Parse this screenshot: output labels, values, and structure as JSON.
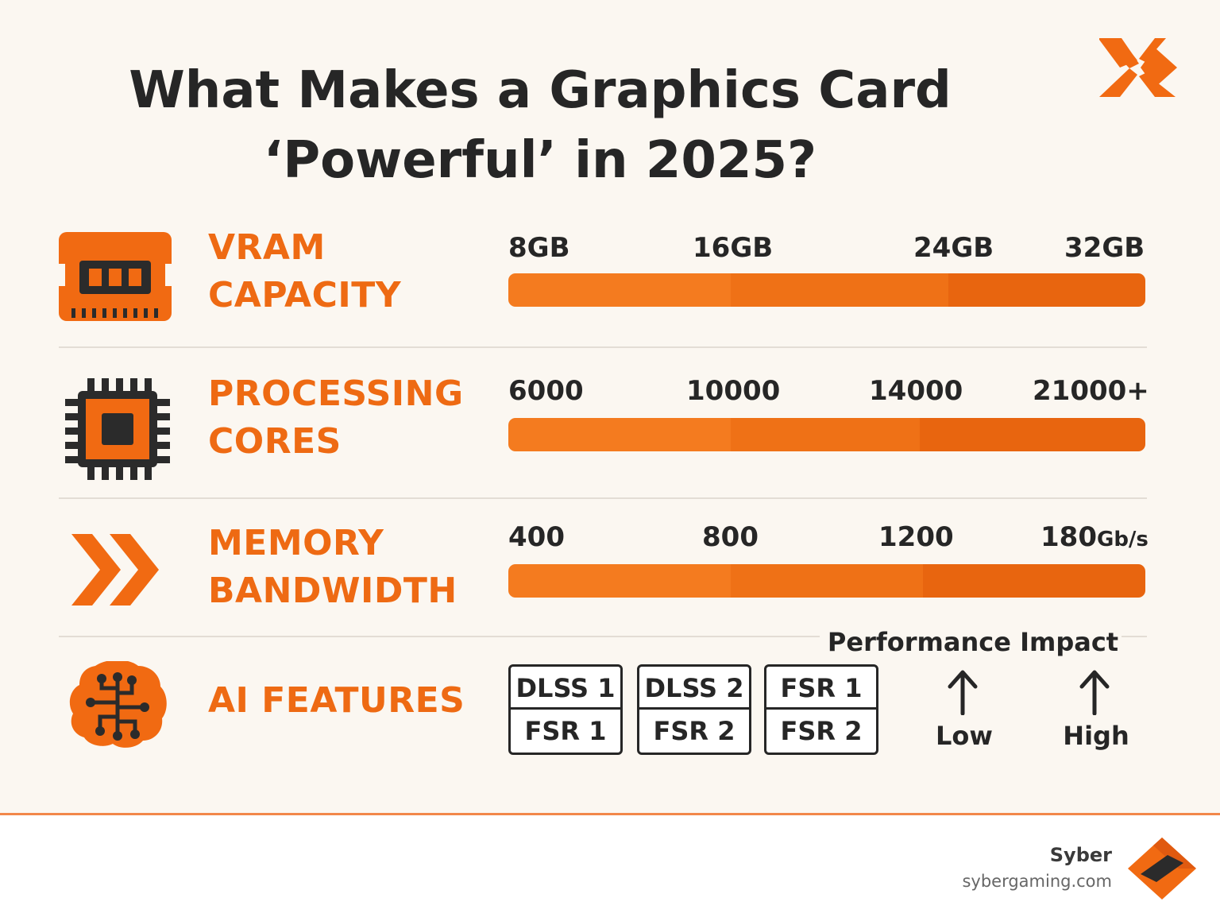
{
  "title_line1": "What Makes a Graphics Card",
  "title_line2": "‘Powerful’ in 2025?",
  "colors": {
    "accent": "#ee6a13",
    "bar_light": "#f47b1f",
    "bar_mid": "#ef7116",
    "bar_dark": "#e8650f",
    "text": "#262626",
    "background": "#fbf7f1"
  },
  "rows": [
    {
      "icon": "memory-chip-icon",
      "label_line1": "VRAM",
      "label_line2": "CAPACITY",
      "ticks": [
        {
          "value": "8",
          "unit": "GB"
        },
        {
          "value": "16",
          "unit": "GB"
        },
        {
          "value": "24",
          "unit": "GB"
        },
        {
          "value": "32",
          "unit": "GB"
        }
      ]
    },
    {
      "icon": "processor-chip-icon",
      "label_line1": "PROCESSING",
      "label_line2": "CORES",
      "ticks": [
        {
          "value": "6000",
          "unit": ""
        },
        {
          "value": "10000",
          "unit": ""
        },
        {
          "value": "14000",
          "unit": ""
        },
        {
          "value": "21000+",
          "unit": ""
        }
      ]
    },
    {
      "icon": "double-chevron-icon",
      "label_line1": "MEMORY",
      "label_line2": "BANDWIDTH",
      "ticks": [
        {
          "value": "400",
          "unit": ""
        },
        {
          "value": "800",
          "unit": ""
        },
        {
          "value": "1200",
          "unit": ""
        },
        {
          "value": "180",
          "unit": "Gb/s"
        }
      ]
    }
  ],
  "ai": {
    "icon": "ai-brain-circuit-icon",
    "label": "AI FEATURES",
    "boxes": [
      {
        "top": "DLSS 1",
        "bottom": "FSR 1"
      },
      {
        "top": "DLSS 2",
        "bottom": "FSR 2"
      },
      {
        "top": "FSR 1",
        "bottom": "FSR 2"
      }
    ],
    "performance_title": "Performance Impact",
    "low_label": "Low",
    "high_label": "High"
  },
  "footer": {
    "brand": "Syber",
    "url": "sybergaming.com"
  }
}
